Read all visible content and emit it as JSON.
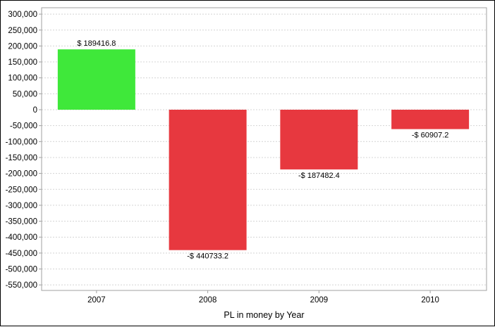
{
  "chart_data": {
    "type": "bar",
    "xlabel": "PL in money by Year",
    "ylabel": "",
    "title": "",
    "categories": [
      "2007",
      "2008",
      "2009",
      "2010"
    ],
    "values": [
      189416.8,
      -440733.2,
      -187482.4,
      -60907.2
    ],
    "data_labels": [
      "$ 189416.8",
      "-$ 440733.2",
      "-$ 187482.4",
      "-$ 60907.2"
    ],
    "ylim": [
      -560000,
      310000
    ],
    "y_ticks": [
      300000,
      250000,
      200000,
      150000,
      100000,
      50000,
      0,
      -50000,
      -100000,
      -150000,
      -200000,
      -250000,
      -300000,
      -350000,
      -400000,
      -450000,
      -500000,
      -550000
    ],
    "y_tick_labels": [
      "300,000",
      "250,000",
      "200,000",
      "150,000",
      "100,000",
      "50,000",
      "0",
      "-50,000",
      "-100,000",
      "-150,000",
      "-200,000",
      "-250,000",
      "-300,000",
      "-350,000",
      "-400,000",
      "-450,000",
      "-500,000",
      "-550,000"
    ],
    "grid": true,
    "colors": {
      "positive": "#3fe83a",
      "negative": "#e7383f",
      "grid": "#d4d4d4"
    }
  }
}
